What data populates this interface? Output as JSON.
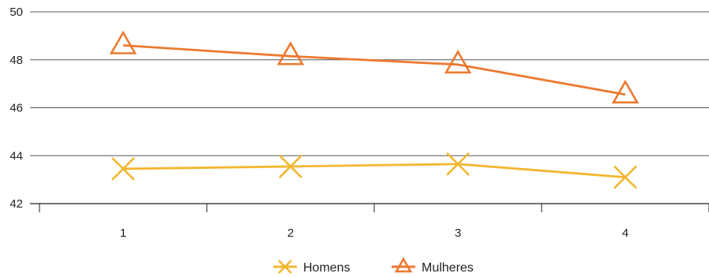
{
  "chart_data": {
    "type": "line",
    "title": "",
    "xlabel": "",
    "ylabel": "",
    "categories": [
      "1",
      "2",
      "3",
      "4"
    ],
    "ylim": [
      42,
      50
    ],
    "yticks": [
      "42",
      "44",
      "46",
      "48",
      "50"
    ],
    "grid": true,
    "legend_position": "bottom",
    "series": [
      {
        "name": "Homens",
        "values": [
          43.45,
          43.55,
          43.65,
          43.1
        ],
        "color": "#f2b731",
        "marker": "x"
      },
      {
        "name": "Mulheres",
        "values": [
          48.6,
          48.15,
          47.8,
          46.55
        ],
        "color": "#ec7a30",
        "marker": "triangle"
      }
    ]
  }
}
